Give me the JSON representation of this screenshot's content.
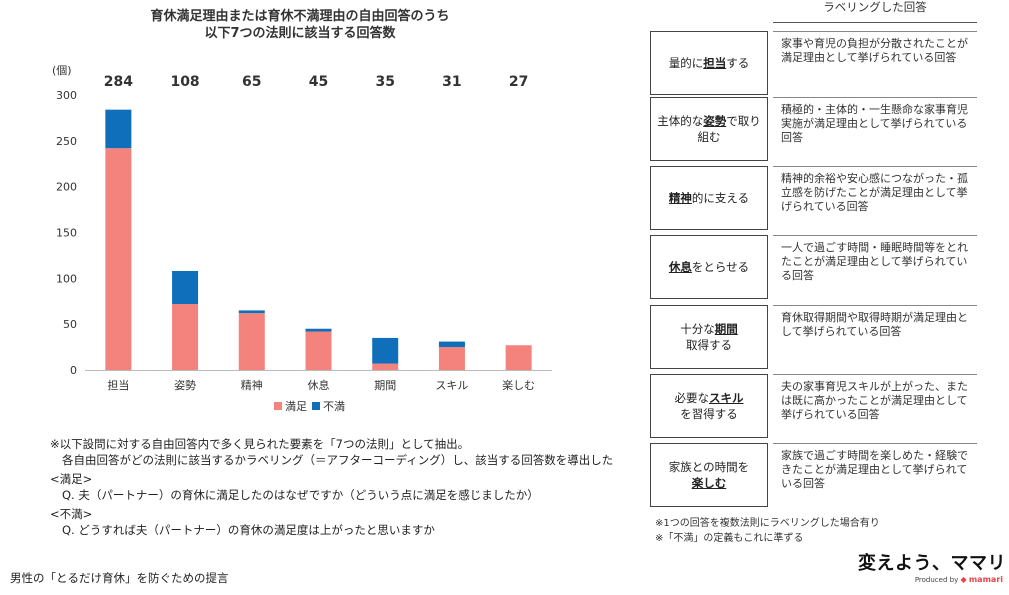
{
  "chart_title": {
    "line1": "育休満足理由または育休不満理由の自由回答のうち",
    "line2": "以下7つの法則に該当する回答数"
  },
  "colors": {
    "satisfied": "#f4837d",
    "dissatisfied": "#0f6fba",
    "axis": "#bbbbbb"
  },
  "chart_data": {
    "type": "bar",
    "stacked": true,
    "categories": [
      "担当",
      "姿勢",
      "精神",
      "休息",
      "期間",
      "スキル",
      "楽しむ"
    ],
    "totals": [
      "284",
      "108",
      "65",
      "45",
      "35",
      "31",
      "27"
    ],
    "series": [
      {
        "name": "満足",
        "values": [
          242,
          72,
          62,
          42,
          7,
          25,
          27
        ]
      },
      {
        "name": "不満",
        "values": [
          42,
          36,
          3,
          3,
          28,
          6,
          0
        ]
      }
    ],
    "ylabel": "(個)",
    "ylim": [
      0,
      300
    ],
    "yticks": [
      0,
      50,
      100,
      150,
      200,
      250,
      300
    ],
    "grid": false,
    "legend": "bottom"
  },
  "notes": {
    "line1": "※以下設問に対する自由回答内で多く見られた要素を「7つの法則」として抽出。",
    "line2": "各自由回答がどの法則に該当するかラベリング（＝アフターコーディング）し、該当する回答数を導出した",
    "line3": "<満足>",
    "line4": "Q. 夫（パートナー）の育休に満足したのはなぜですか（どういう点に満足を感じましたか）",
    "line5": "<不満>",
    "line6": "Q. どうすれば夫（パートナー）の育休の満足度は上がったと思いますか"
  },
  "footer": "男性の「とるだけ育休」を防ぐための提言",
  "label_header": "ラベリングした回答",
  "rules": [
    {
      "pre": "量的に",
      "key": "担当",
      "post": "する",
      "pre2": "",
      "desc": "家事や育児の負担が分散されたことが満足理由として挙げられている回答"
    },
    {
      "pre": "主体的な",
      "key": "姿勢",
      "post": "で取り組む",
      "pre2": "",
      "desc": "積極的・主体的・一生懸命な家事育児実施が満足理由として挙げられている回答"
    },
    {
      "pre": "",
      "key": "精神",
      "post": "的に支える",
      "pre2": "",
      "desc": "精神的余裕や安心感につながった・孤立感を防げたことが満足理由として挙げられている回答"
    },
    {
      "pre": "",
      "key": "休息",
      "post": "をとらせる",
      "pre2": "",
      "desc": "一人で過ごす時間・睡眠時間等をとれたことが満足理由として挙げられている回答"
    },
    {
      "pre": "十分な",
      "key": "期間",
      "post": "取得する",
      "pre2": "",
      "desc": "育休取得期間や取得時期が満足理由として挙げられている回答"
    },
    {
      "pre": "必要な",
      "key": "スキル",
      "post": "を習得する",
      "pre2": "",
      "desc": "夫の家事育児スキルが上がった、または既に高かったことが満足理由として挙げられている回答"
    },
    {
      "pre": "家族との時間を",
      "key": "楽しむ",
      "post": "",
      "pre2": "",
      "desc": "家族で過ごす時間を楽しめた・経験できたことが満足理由として挙げられている回答"
    }
  ],
  "rules_note": {
    "line1": "※1つの回答を複数法則にラベリングした場合有り",
    "line2": "※「不満」の定義もこれに準ずる"
  },
  "logo": {
    "main": "変えよう、ママリと",
    "produced_by": "Produced by",
    "brand": "mamari"
  }
}
